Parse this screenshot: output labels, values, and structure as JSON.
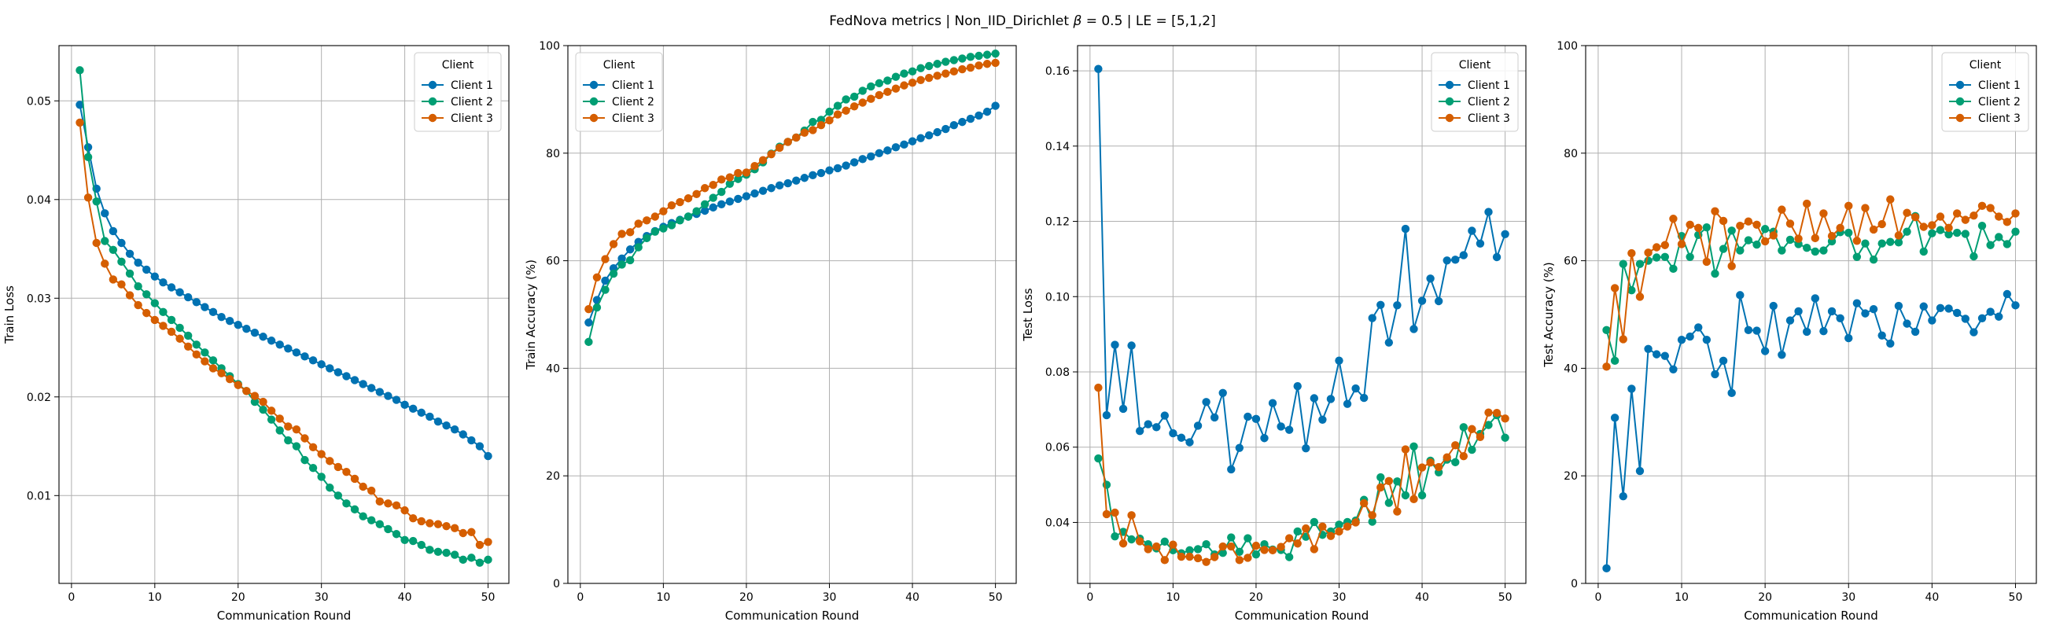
{
  "figure": {
    "suptitle_prefix": "FedNova metrics | Non_IID_Dirichlet ",
    "suptitle_beta": "β",
    "suptitle_suffix": " = 0.5 | LE = [5,1,2]"
  },
  "colors": {
    "Client 1": "#0072b2",
    "Client 2": "#009e73",
    "Client 3": "#d55e00"
  },
  "chart_data": [
    {
      "type": "line",
      "title": "",
      "xlabel": "Communication Round",
      "ylabel": "Train Loss",
      "xlim": [
        -1.5,
        52.5
      ],
      "ylim": [
        0.0011,
        0.0556
      ],
      "xticks": [
        0,
        10,
        20,
        30,
        40,
        50
      ],
      "yticks": [
        0.01,
        0.02,
        0.03,
        0.04,
        0.05
      ],
      "ytick_labels": [
        "0.01",
        "0.02",
        "0.03",
        "0.04",
        "0.05"
      ],
      "grid": true,
      "legend": {
        "title": "Client",
        "position": "top-right"
      },
      "x": [
        1,
        2,
        3,
        4,
        5,
        6,
        7,
        8,
        9,
        10,
        11,
        12,
        13,
        14,
        15,
        16,
        17,
        18,
        19,
        20,
        21,
        22,
        23,
        24,
        25,
        26,
        27,
        28,
        29,
        30,
        31,
        32,
        33,
        34,
        35,
        36,
        37,
        38,
        39,
        40,
        41,
        42,
        43,
        44,
        45,
        46,
        47,
        48,
        49,
        50
      ],
      "series": [
        {
          "name": "Client 1",
          "values": [
            0.0496,
            0.0453,
            0.0411,
            0.0386,
            0.0368,
            0.0356,
            0.0345,
            0.0336,
            0.0329,
            0.0322,
            0.0316,
            0.0311,
            0.0306,
            0.0301,
            0.0296,
            0.0291,
            0.0286,
            0.0281,
            0.0277,
            0.0273,
            0.0269,
            0.0265,
            0.0261,
            0.0257,
            0.0253,
            0.0249,
            0.0245,
            0.0241,
            0.0237,
            0.0233,
            0.0229,
            0.0225,
            0.0221,
            0.0217,
            0.0213,
            0.0209,
            0.0205,
            0.0201,
            0.0197,
            0.0192,
            0.0188,
            0.0184,
            0.018,
            0.0175,
            0.0171,
            0.0167,
            0.0162,
            0.0156,
            0.015,
            0.014
          ]
        },
        {
          "name": "Client 2",
          "values": [
            0.0531,
            0.0443,
            0.0398,
            0.0358,
            0.0349,
            0.0337,
            0.0325,
            0.0312,
            0.0304,
            0.0295,
            0.0286,
            0.0278,
            0.027,
            0.0262,
            0.0253,
            0.0245,
            0.0237,
            0.0229,
            0.0221,
            0.0213,
            0.0206,
            0.0195,
            0.0187,
            0.0177,
            0.0166,
            0.0156,
            0.015,
            0.0136,
            0.0128,
            0.0119,
            0.0108,
            0.01,
            0.0092,
            0.0086,
            0.0079,
            0.0075,
            0.0071,
            0.0066,
            0.0061,
            0.0055,
            0.0054,
            0.005,
            0.0045,
            0.0043,
            0.0042,
            0.004,
            0.0035,
            0.0037,
            0.0032,
            0.0035
          ]
        },
        {
          "name": "Client 3",
          "values": [
            0.0478,
            0.0402,
            0.0356,
            0.0335,
            0.0319,
            0.0314,
            0.0303,
            0.0293,
            0.0285,
            0.0278,
            0.0272,
            0.0266,
            0.0259,
            0.0251,
            0.0243,
            0.0236,
            0.0229,
            0.0224,
            0.0218,
            0.0212,
            0.0206,
            0.0201,
            0.0195,
            0.0186,
            0.0178,
            0.017,
            0.0167,
            0.0158,
            0.0149,
            0.0142,
            0.0135,
            0.0129,
            0.0124,
            0.0117,
            0.0109,
            0.0105,
            0.0094,
            0.0092,
            0.009,
            0.0085,
            0.0077,
            0.0074,
            0.0072,
            0.0071,
            0.0069,
            0.0067,
            0.0062,
            0.0063,
            0.005,
            0.0053
          ]
        }
      ]
    },
    {
      "type": "line",
      "title": "",
      "xlabel": "Communication Round",
      "ylabel": "Train Accuracy (%)",
      "xlim": [
        -1.5,
        52.5
      ],
      "ylim": [
        0,
        100
      ],
      "xticks": [
        0,
        10,
        20,
        30,
        40,
        50
      ],
      "yticks": [
        0,
        20,
        40,
        60,
        80,
        100
      ],
      "ytick_labels": [
        "0",
        "20",
        "40",
        "60",
        "80",
        "100"
      ],
      "grid": true,
      "legend": {
        "title": "Client",
        "position": "top-left"
      },
      "x": [
        1,
        2,
        3,
        4,
        5,
        6,
        7,
        8,
        9,
        10,
        11,
        12,
        13,
        14,
        15,
        16,
        17,
        18,
        19,
        20,
        21,
        22,
        23,
        24,
        25,
        26,
        27,
        28,
        29,
        30,
        31,
        32,
        33,
        34,
        35,
        36,
        37,
        38,
        39,
        40,
        41,
        42,
        43,
        44,
        45,
        46,
        47,
        48,
        49,
        50
      ],
      "series": [
        {
          "name": "Client 1",
          "values": [
            48.5,
            52.7,
            56.3,
            58.6,
            60.4,
            62.1,
            63.5,
            64.6,
            65.5,
            66.3,
            67.0,
            67.6,
            68.2,
            68.7,
            69.3,
            69.9,
            70.5,
            71.0,
            71.5,
            72.0,
            72.5,
            73.0,
            73.5,
            74.0,
            74.4,
            74.9,
            75.4,
            75.9,
            76.3,
            76.8,
            77.2,
            77.7,
            78.3,
            78.9,
            79.4,
            80.0,
            80.5,
            81.1,
            81.6,
            82.2,
            82.8,
            83.3,
            83.9,
            84.5,
            85.2,
            85.8,
            86.4,
            87.0,
            87.7,
            88.8
          ]
        },
        {
          "name": "Client 2",
          "values": [
            44.9,
            51.3,
            54.6,
            57.6,
            59.3,
            60.1,
            62.5,
            64.2,
            65.4,
            66.0,
            66.6,
            67.5,
            68.2,
            69.2,
            70.5,
            71.7,
            72.8,
            74.3,
            75.2,
            76.0,
            77.0,
            78.3,
            79.9,
            81.2,
            82.1,
            82.9,
            84.2,
            85.8,
            86.2,
            87.7,
            88.8,
            90.0,
            90.5,
            91.6,
            92.4,
            93.0,
            93.5,
            94.2,
            94.8,
            95.2,
            95.8,
            96.2,
            96.6,
            97.0,
            97.3,
            97.6,
            97.9,
            98.1,
            98.3,
            98.5
          ]
        },
        {
          "name": "Client 3",
          "values": [
            51.0,
            56.9,
            60.3,
            63.1,
            65.0,
            65.3,
            66.9,
            67.5,
            68.2,
            69.2,
            70.3,
            70.9,
            71.6,
            72.4,
            73.5,
            74.1,
            75.1,
            75.5,
            76.3,
            76.4,
            77.6,
            78.7,
            79.8,
            81.0,
            82.1,
            82.9,
            83.8,
            84.3,
            85.2,
            86.1,
            87.2,
            87.9,
            88.7,
            89.4,
            90.1,
            90.8,
            91.4,
            92.0,
            92.6,
            93.1,
            93.6,
            94.0,
            94.4,
            94.8,
            95.2,
            95.6,
            95.9,
            96.3,
            96.6,
            96.8
          ]
        }
      ]
    },
    {
      "type": "line",
      "title": "",
      "xlabel": "Communication Round",
      "ylabel": "Test Loss",
      "xlim": [
        -1.5,
        52.5
      ],
      "ylim": [
        0.0238,
        0.1667
      ],
      "xticks": [
        0,
        10,
        20,
        30,
        40,
        50
      ],
      "yticks": [
        0.04,
        0.06,
        0.08,
        0.1,
        0.12,
        0.14,
        0.16
      ],
      "ytick_labels": [
        "0.04",
        "0.06",
        "0.08",
        "0.10",
        "0.12",
        "0.14",
        "0.16"
      ],
      "grid": true,
      "legend": {
        "title": "Client",
        "position": "top-right"
      },
      "x": [
        1,
        2,
        3,
        4,
        5,
        6,
        7,
        8,
        9,
        10,
        11,
        12,
        13,
        14,
        15,
        16,
        17,
        18,
        19,
        20,
        21,
        22,
        23,
        24,
        25,
        26,
        27,
        28,
        29,
        30,
        31,
        32,
        33,
        34,
        35,
        36,
        37,
        38,
        39,
        40,
        41,
        42,
        43,
        44,
        45,
        46,
        47,
        48,
        49,
        50
      ],
      "series": [
        {
          "name": "Client 1",
          "values": [
            0.1605,
            0.0685,
            0.0872,
            0.0702,
            0.087,
            0.0643,
            0.0661,
            0.0653,
            0.0684,
            0.0637,
            0.0625,
            0.0613,
            0.0657,
            0.072,
            0.0679,
            0.0744,
            0.0541,
            0.0598,
            0.0681,
            0.0675,
            0.0624,
            0.0717,
            0.0655,
            0.0646,
            0.0762,
            0.0597,
            0.073,
            0.0673,
            0.0728,
            0.083,
            0.0715,
            0.0756,
            0.0731,
            0.0943,
            0.0978,
            0.0878,
            0.0977,
            0.118,
            0.0914,
            0.0989,
            0.1048,
            0.0988,
            0.1096,
            0.1098,
            0.111,
            0.1175,
            0.1141,
            0.1225,
            0.1105,
            0.1166
          ]
        },
        {
          "name": "Client 2",
          "values": [
            0.057,
            0.05,
            0.0363,
            0.0375,
            0.0355,
            0.0357,
            0.0342,
            0.0331,
            0.0349,
            0.0326,
            0.0318,
            0.0326,
            0.0329,
            0.0342,
            0.0315,
            0.0319,
            0.036,
            0.0322,
            0.0358,
            0.0315,
            0.0342,
            0.0328,
            0.0327,
            0.0308,
            0.0376,
            0.0362,
            0.0401,
            0.0367,
            0.0376,
            0.0394,
            0.0401,
            0.0405,
            0.046,
            0.0402,
            0.052,
            0.0452,
            0.0509,
            0.0472,
            0.0602,
            0.0472,
            0.0564,
            0.0533,
            0.0567,
            0.056,
            0.0653,
            0.0593,
            0.0635,
            0.0659,
            0.0685,
            0.0625
          ]
        },
        {
          "name": "Client 3",
          "values": [
            0.0758,
            0.0422,
            0.0426,
            0.0344,
            0.0419,
            0.035,
            0.0329,
            0.0336,
            0.03,
            0.0341,
            0.0309,
            0.0309,
            0.0305,
            0.0295,
            0.0308,
            0.0336,
            0.0336,
            0.03,
            0.0306,
            0.0338,
            0.0327,
            0.0326,
            0.0335,
            0.0358,
            0.0344,
            0.0384,
            0.0329,
            0.0389,
            0.0364,
            0.0376,
            0.0389,
            0.04,
            0.0451,
            0.0419,
            0.0493,
            0.051,
            0.0429,
            0.0594,
            0.0462,
            0.0546,
            0.0559,
            0.0547,
            0.0573,
            0.0605,
            0.0576,
            0.0648,
            0.0627,
            0.0692,
            0.0691,
            0.0676
          ]
        }
      ]
    },
    {
      "type": "line",
      "title": "",
      "xlabel": "Communication Round",
      "ylabel": "Test Accuracy (%)",
      "xlim": [
        -1.5,
        52.5
      ],
      "ylim": [
        0,
        100
      ],
      "xticks": [
        0,
        10,
        20,
        30,
        40,
        50
      ],
      "yticks": [
        0,
        20,
        40,
        60,
        80,
        100
      ],
      "ytick_labels": [
        "0",
        "20",
        "40",
        "60",
        "80",
        "100"
      ],
      "grid": true,
      "legend": {
        "title": "Client",
        "position": "top-right"
      },
      "x": [
        1,
        2,
        3,
        4,
        5,
        6,
        7,
        8,
        9,
        10,
        11,
        12,
        13,
        14,
        15,
        16,
        17,
        18,
        19,
        20,
        21,
        22,
        23,
        24,
        25,
        26,
        27,
        28,
        29,
        30,
        31,
        32,
        33,
        34,
        35,
        36,
        37,
        38,
        39,
        40,
        41,
        42,
        43,
        44,
        45,
        46,
        47,
        48,
        49,
        50
      ],
      "series": [
        {
          "name": "Client 1",
          "values": [
            2.8,
            30.8,
            16.2,
            36.2,
            20.9,
            43.6,
            42.6,
            42.3,
            39.8,
            45.3,
            45.9,
            47.6,
            45.3,
            38.9,
            41.4,
            35.4,
            53.6,
            47.1,
            47.0,
            43.2,
            51.6,
            42.5,
            48.9,
            50.6,
            46.8,
            53.0,
            46.9,
            50.6,
            49.3,
            45.6,
            52.1,
            50.2,
            51.0,
            46.1,
            44.6,
            51.6,
            48.3,
            46.8,
            51.5,
            48.9,
            51.2,
            51.1,
            50.3,
            49.2,
            46.7,
            49.3,
            50.5,
            49.6,
            53.8,
            51.7
          ]
        },
        {
          "name": "Client 2",
          "values": [
            47.1,
            41.4,
            59.4,
            54.5,
            59.4,
            60.0,
            60.6,
            60.7,
            58.5,
            64.6,
            60.7,
            64.8,
            66.2,
            57.6,
            62.2,
            65.6,
            61.9,
            63.8,
            63.0,
            65.9,
            65.4,
            61.9,
            63.9,
            63.1,
            62.4,
            61.7,
            61.9,
            63.6,
            65.3,
            65.2,
            60.7,
            63.2,
            60.2,
            63.2,
            63.5,
            63.4,
            65.4,
            68.3,
            61.7,
            65.1,
            65.7,
            64.9,
            65.2,
            65.0,
            60.8,
            66.5,
            62.9,
            64.4,
            63.1,
            65.4
          ]
        },
        {
          "name": "Client 3",
          "values": [
            40.3,
            54.9,
            45.4,
            61.4,
            53.3,
            61.5,
            62.5,
            62.9,
            67.8,
            63.1,
            66.7,
            66.1,
            59.8,
            69.2,
            67.4,
            59.0,
            66.5,
            67.3,
            66.7,
            63.6,
            64.7,
            69.5,
            66.9,
            64.1,
            70.6,
            64.2,
            68.8,
            64.6,
            66.1,
            70.2,
            63.7,
            69.8,
            65.8,
            66.8,
            71.4,
            64.7,
            68.9,
            68.1,
            66.3,
            66.6,
            68.2,
            66.1,
            68.8,
            67.6,
            68.4,
            70.2,
            69.8,
            68.2,
            67.2,
            68.8
          ]
        }
      ]
    }
  ]
}
